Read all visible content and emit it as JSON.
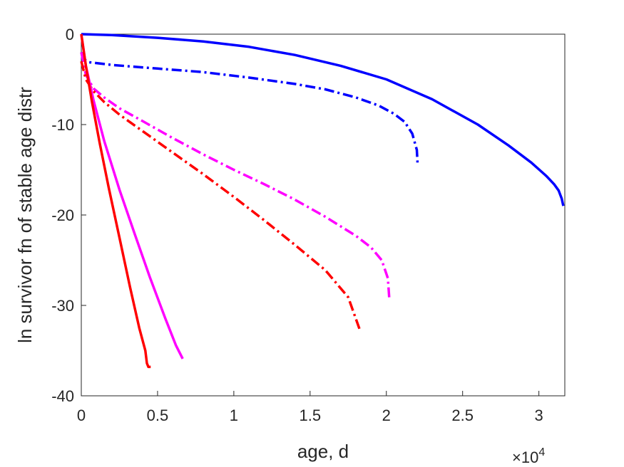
{
  "chart_data": {
    "type": "line",
    "xlabel": "age, d",
    "ylabel": "ln survivor fn of stable age distr",
    "x_exponent_label": "×10",
    "x_exponent_power": "4",
    "xlim": [
      0,
      31700
    ],
    "ylim": [
      -40,
      0
    ],
    "x_ticks": [
      0,
      5000,
      10000,
      15000,
      20000,
      25000,
      30000
    ],
    "x_tick_labels": [
      "0",
      "0.5",
      "1",
      "1.5",
      "2",
      "2.5",
      "3"
    ],
    "y_ticks": [
      0,
      -10,
      -20,
      -30,
      -40
    ],
    "y_tick_labels": [
      "0",
      "-10",
      "-20",
      "-30",
      "-40"
    ],
    "grid": false,
    "series": [
      {
        "color": "#0000ff",
        "style": "solid",
        "x": [
          0,
          2000,
          5000,
          8000,
          11000,
          14000,
          17000,
          20000,
          23000,
          26000,
          28000,
          29500,
          30500,
          31000,
          31300,
          31500,
          31600
        ],
        "y": [
          0,
          -0.1,
          -0.4,
          -0.8,
          -1.4,
          -2.3,
          -3.5,
          -5.0,
          -7.2,
          -10.0,
          -12.3,
          -14.2,
          -15.7,
          -16.6,
          -17.3,
          -18.2,
          -19.0
        ]
      },
      {
        "color": "#0000ff",
        "style": "dashdot",
        "x": [
          0,
          200,
          500,
          2000,
          5000,
          8000,
          11000,
          14000,
          16000,
          18000,
          19500,
          20500,
          21200,
          21700,
          22000,
          22050
        ],
        "y": [
          -2.0,
          -2.8,
          -3.1,
          -3.4,
          -3.8,
          -4.2,
          -4.8,
          -5.5,
          -6.1,
          -7.0,
          -7.9,
          -8.8,
          -9.7,
          -11.0,
          -12.8,
          -14.4
        ]
      },
      {
        "color": "#ff00ff",
        "style": "dashdot",
        "x": [
          0,
          300,
          800,
          1500,
          2500,
          4000,
          6000,
          8000,
          10000,
          12000,
          14000,
          16000,
          18000,
          19000,
          19700,
          20100,
          20200
        ],
        "y": [
          -2.0,
          -4.5,
          -6.0,
          -7.0,
          -8.2,
          -9.6,
          -11.5,
          -13.3,
          -15.0,
          -16.6,
          -18.3,
          -20.2,
          -22.3,
          -23.6,
          -25.0,
          -27.0,
          -29.4
        ]
      },
      {
        "color": "#ff0000",
        "style": "dashdot",
        "x": [
          0,
          300,
          800,
          1500,
          2500,
          4000,
          6000,
          8000,
          10000,
          12000,
          14000,
          16000,
          17500,
          18300
        ],
        "y": [
          -3.0,
          -5.0,
          -6.3,
          -7.5,
          -8.9,
          -10.7,
          -13.1,
          -15.5,
          -18.0,
          -20.6,
          -23.3,
          -26.1,
          -29.1,
          -32.9
        ]
      },
      {
        "color": "#ff00ff",
        "style": "solid",
        "x": [
          0,
          300,
          800,
          1500,
          2500,
          3500,
          4500,
          5500,
          6200,
          6650
        ],
        "y": [
          0,
          -3.5,
          -7.3,
          -11.8,
          -17.2,
          -22.1,
          -26.9,
          -31.4,
          -34.4,
          -35.9
        ]
      },
      {
        "color": "#ff0000",
        "style": "solid",
        "x": [
          0,
          300,
          700,
          1200,
          1800,
          2500,
          3200,
          3800,
          4200,
          4300,
          4400,
          4550
        ],
        "y": [
          0,
          -3.5,
          -7.5,
          -12.0,
          -17.0,
          -22.5,
          -28.0,
          -32.5,
          -35.0,
          -36.4,
          -36.8,
          -36.8
        ]
      }
    ]
  }
}
